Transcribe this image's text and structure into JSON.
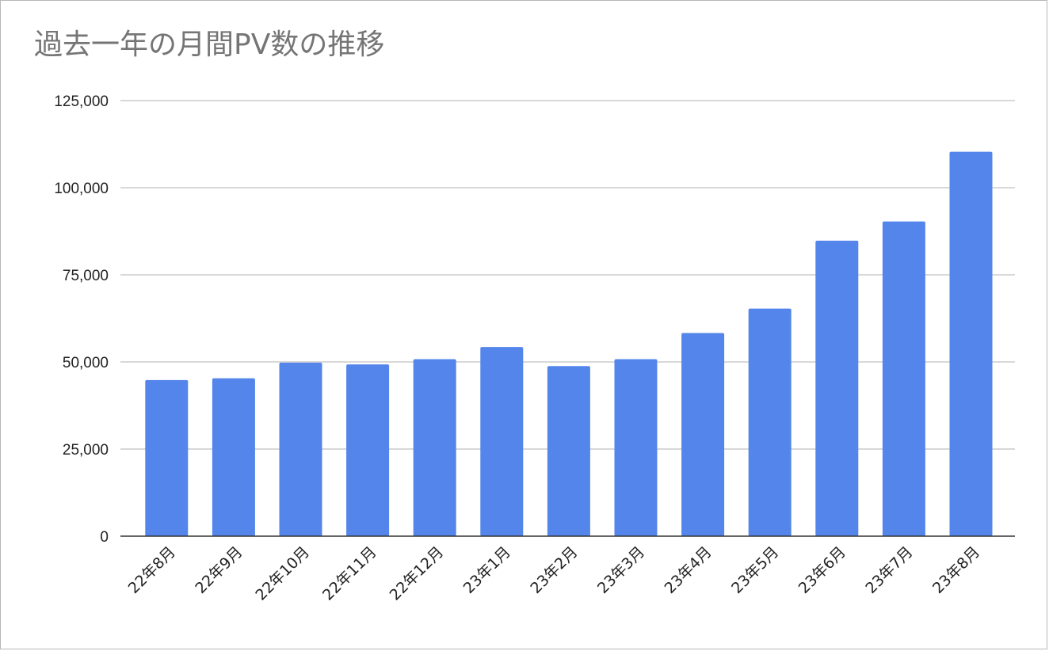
{
  "chart_data": {
    "type": "bar",
    "title": "過去一年の月間PV数の推移",
    "xlabel": "",
    "ylabel": "",
    "categories": [
      "22年8月",
      "22年9月",
      "22年10月",
      "22年11月",
      "22年12月",
      "23年1月",
      "23年2月",
      "23年3月",
      "23年4月",
      "23年5月",
      "23年6月",
      "23年7月",
      "23年8月"
    ],
    "values": [
      44800,
      45300,
      49800,
      49300,
      50800,
      54300,
      48800,
      50800,
      58300,
      65300,
      84800,
      90300,
      110300
    ],
    "ylim": [
      0,
      125000
    ],
    "yticks": [
      "0",
      "25,000",
      "50,000",
      "75,000",
      "100,000",
      "125,000"
    ],
    "grid": true,
    "legend": "none",
    "colors": {
      "bar": "#5385eb",
      "grid": "#cccccc",
      "axis": "#333333",
      "title": "#757575"
    }
  }
}
